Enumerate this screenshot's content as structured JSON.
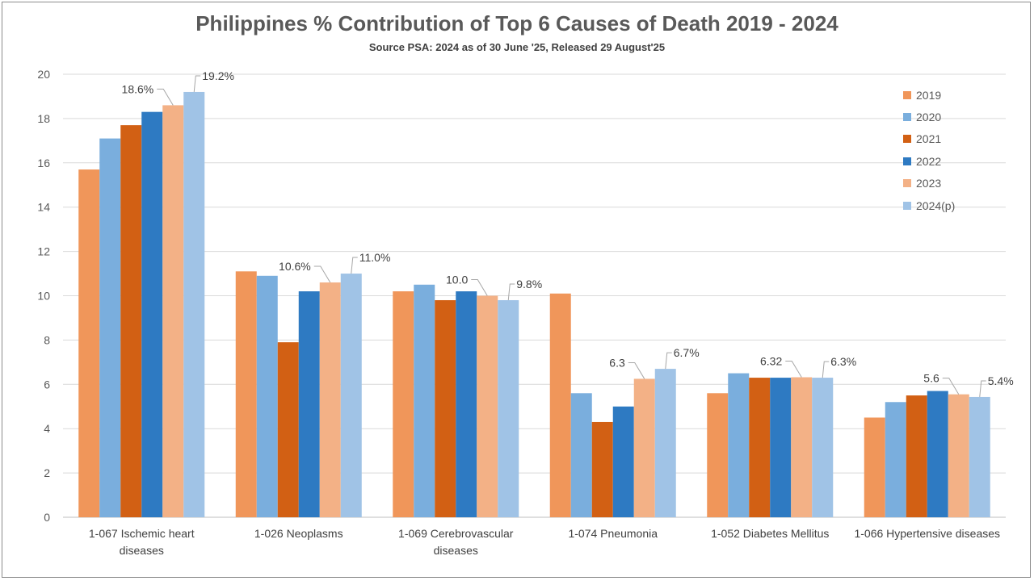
{
  "chart_data": {
    "type": "bar",
    "title": "Philippines % Contribution of Top 6 Causes of Death 2019 - 2024",
    "subtitle": "Source PSA: 2024 as of 30 June '25, Released 29 August'25",
    "xlabel": "",
    "ylabel": "",
    "ylim": [
      0,
      20
    ],
    "yticks": [
      "0",
      "2",
      "4",
      "6",
      "8",
      "10",
      "12",
      "14",
      "16",
      "18",
      "20"
    ],
    "grid": true,
    "legend_position": "top-right",
    "categories": [
      "1-067  Ischemic heart\ndiseases",
      "1-026  Neoplasms",
      "1-069  Cerebrovascular\ndiseases",
      "1-074  Pneumonia",
      "1-052  Diabetes Mellitus",
      "1-066  Hypertensive diseases"
    ],
    "series": [
      {
        "name": "2019",
        "color": "#F0965A",
        "values": [
          15.7,
          11.1,
          10.2,
          10.1,
          5.6,
          4.5
        ]
      },
      {
        "name": "2020",
        "color": "#7AAEDD",
        "values": [
          17.1,
          10.9,
          10.5,
          5.6,
          6.5,
          5.2
        ]
      },
      {
        "name": "2021",
        "color": "#D26014",
        "values": [
          17.7,
          7.9,
          9.8,
          4.3,
          6.3,
          5.5
        ]
      },
      {
        "name": "2022",
        "color": "#2E7AC2",
        "values": [
          18.3,
          10.2,
          10.2,
          5.0,
          6.3,
          5.7
        ]
      },
      {
        "name": "2023",
        "color": "#F3B186",
        "values": [
          18.6,
          10.6,
          10.0,
          6.25,
          6.32,
          5.55
        ]
      },
      {
        "name": "2024(p)",
        "color": "#A0C3E6",
        "values": [
          19.2,
          11.0,
          9.8,
          6.7,
          6.3,
          5.43
        ]
      }
    ],
    "data_labels": {
      "2023": [
        "18.6%",
        "10.6%",
        "10.0",
        "6.3",
        "6.32",
        "5.6"
      ],
      "2024(p)": [
        "19.2%",
        "11.0%",
        "9.8%",
        "6.7%",
        "6.3%",
        "5.4%"
      ]
    }
  }
}
